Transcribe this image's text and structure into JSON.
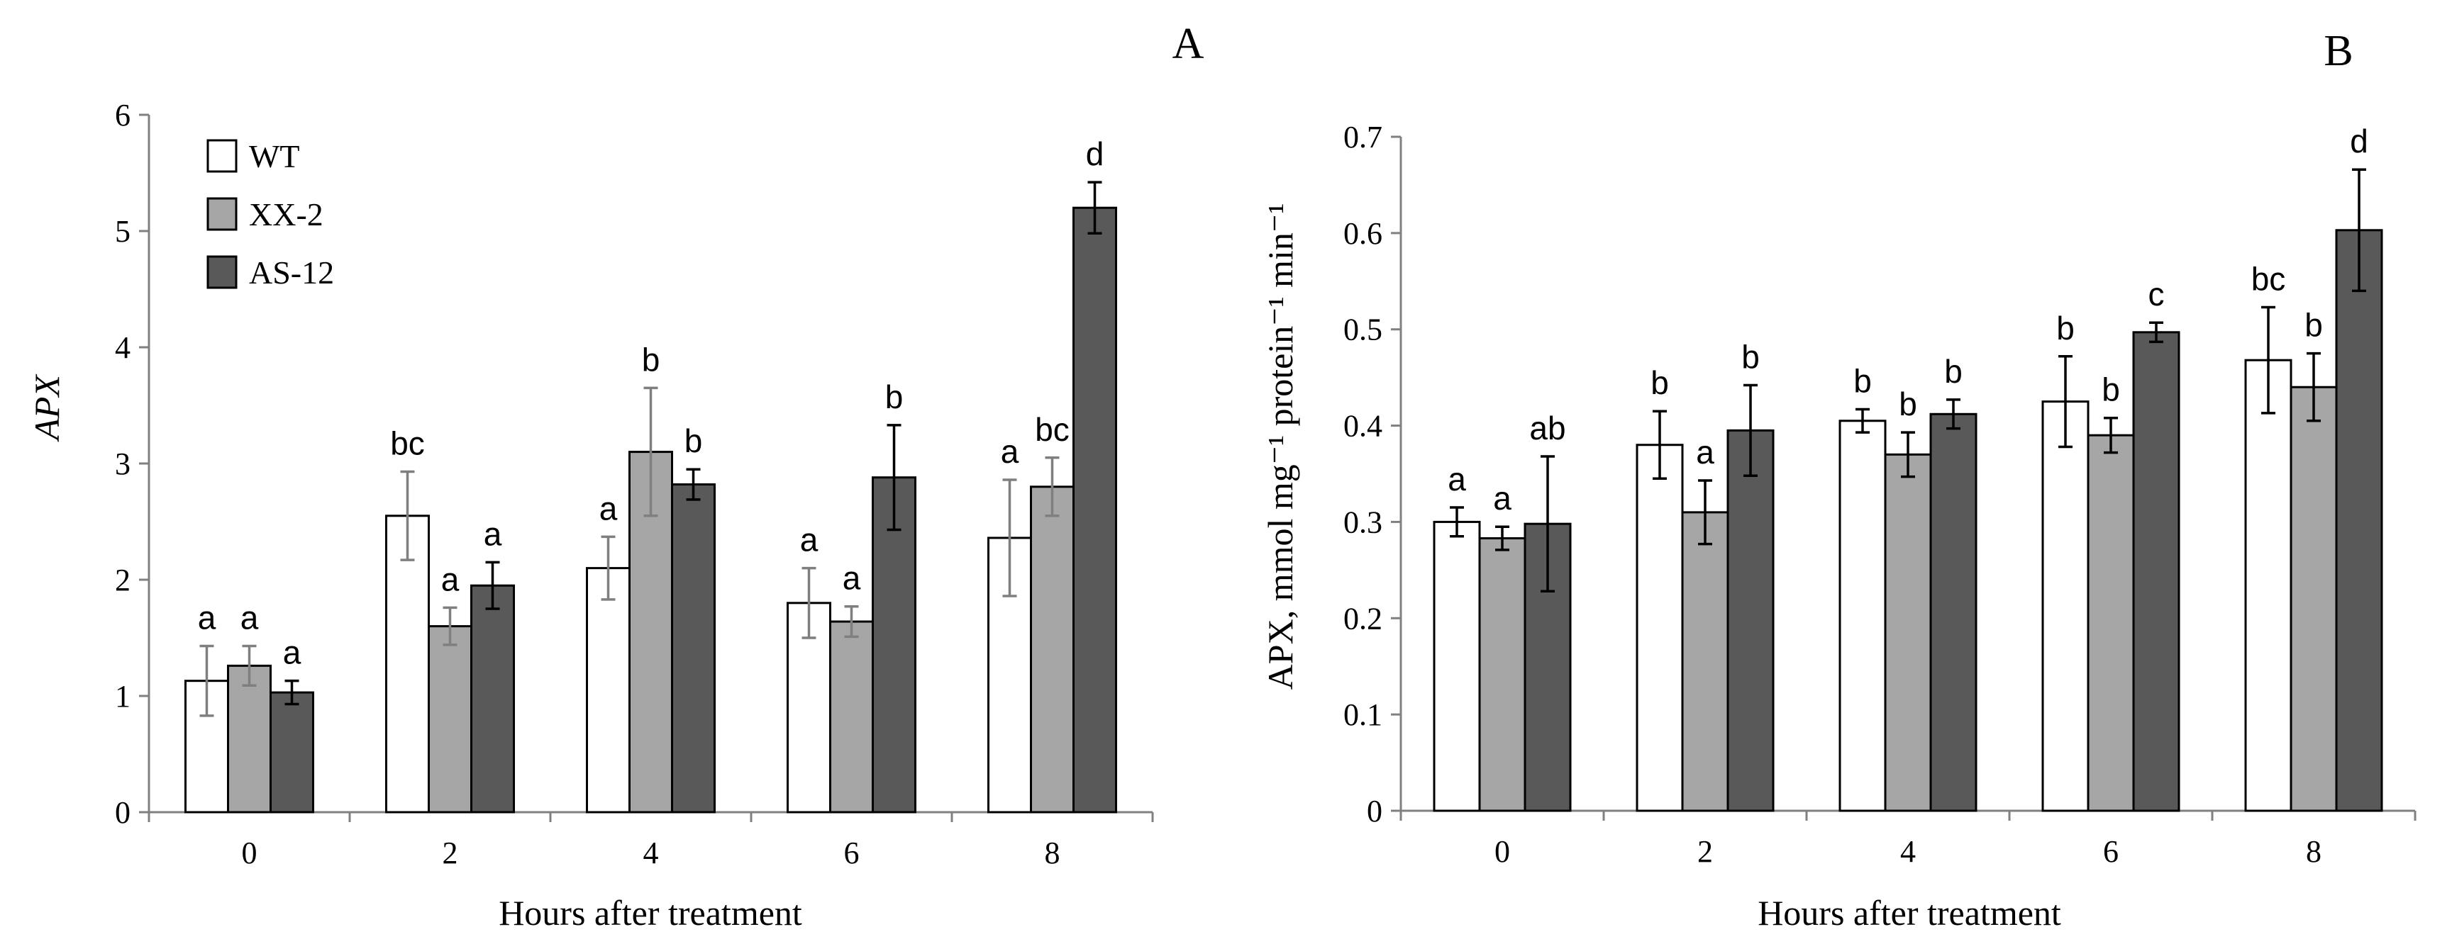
{
  "chart_data": [
    {
      "type": "bar",
      "panel_label": "A",
      "categories": [
        "0",
        "2",
        "4",
        "6",
        "8"
      ],
      "xlabel": "Hours after treatment",
      "ylabel": "APX",
      "ylim": [
        0,
        6
      ],
      "yticks": [
        0,
        1,
        2,
        3,
        4,
        5,
        6
      ],
      "ytick_labels": [
        "0",
        "1",
        "2",
        "3",
        "4",
        "5",
        "6"
      ],
      "legend": {
        "position": "top-left",
        "entries": [
          "WT",
          "XX-2",
          "AS-12"
        ]
      },
      "series": [
        {
          "name": "WT",
          "color": "#ffffff",
          "error_color": "#7f7f7f",
          "values": [
            1.13,
            2.55,
            2.1,
            1.8,
            2.36
          ],
          "errors": [
            0.3,
            0.38,
            0.27,
            0.3,
            0.5
          ],
          "labels": [
            "a",
            "bc",
            "a",
            "a",
            "a"
          ]
        },
        {
          "name": "XX-2",
          "color": "#a6a6a6",
          "error_color": "#7f7f7f",
          "values": [
            1.26,
            1.6,
            3.1,
            1.64,
            2.8
          ],
          "errors": [
            0.17,
            0.16,
            0.55,
            0.13,
            0.25
          ],
          "labels": [
            "a",
            "a",
            "b",
            "a",
            "bc"
          ]
        },
        {
          "name": "AS-12",
          "color": "#595959",
          "error_color": "#000000",
          "values": [
            1.03,
            1.95,
            2.82,
            2.88,
            5.2
          ],
          "errors": [
            0.1,
            0.2,
            0.13,
            0.45,
            0.22
          ],
          "labels": [
            "a",
            "a",
            "b",
            "b",
            "d"
          ]
        }
      ]
    },
    {
      "type": "bar",
      "panel_label": "B",
      "categories": [
        "0",
        "2",
        "4",
        "6",
        "8"
      ],
      "xlabel": "Hours after treatment",
      "ylabel": "APX, mmol mg⁻¹ protein⁻¹ min⁻¹",
      "ylim": [
        0,
        0.7
      ],
      "yticks": [
        0,
        0.1,
        0.2,
        0.3,
        0.4,
        0.5,
        0.6,
        0.7
      ],
      "ytick_labels": [
        "0",
        "0.1",
        "0.2",
        "0.3",
        "0.4",
        "0.5",
        "0.6",
        "0.7"
      ],
      "series": [
        {
          "name": "WT",
          "color": "#ffffff",
          "error_color": "#000000",
          "values": [
            0.3,
            0.38,
            0.405,
            0.425,
            0.468
          ],
          "errors": [
            0.015,
            0.035,
            0.012,
            0.047,
            0.055
          ],
          "labels": [
            "a",
            "b",
            "b",
            "b",
            "bc"
          ]
        },
        {
          "name": "XX-2",
          "color": "#a6a6a6",
          "error_color": "#000000",
          "values": [
            0.283,
            0.31,
            0.37,
            0.39,
            0.44
          ],
          "errors": [
            0.012,
            0.033,
            0.023,
            0.018,
            0.035
          ],
          "labels": [
            "a",
            "a",
            "b",
            "b",
            "b"
          ]
        },
        {
          "name": "AS-12",
          "color": "#595959",
          "error_color": "#000000",
          "values": [
            0.298,
            0.395,
            0.412,
            0.497,
            0.603
          ],
          "errors": [
            0.07,
            0.047,
            0.015,
            0.01,
            0.063
          ],
          "labels": [
            "ab",
            "b",
            "b",
            "c",
            "d"
          ]
        }
      ]
    }
  ]
}
